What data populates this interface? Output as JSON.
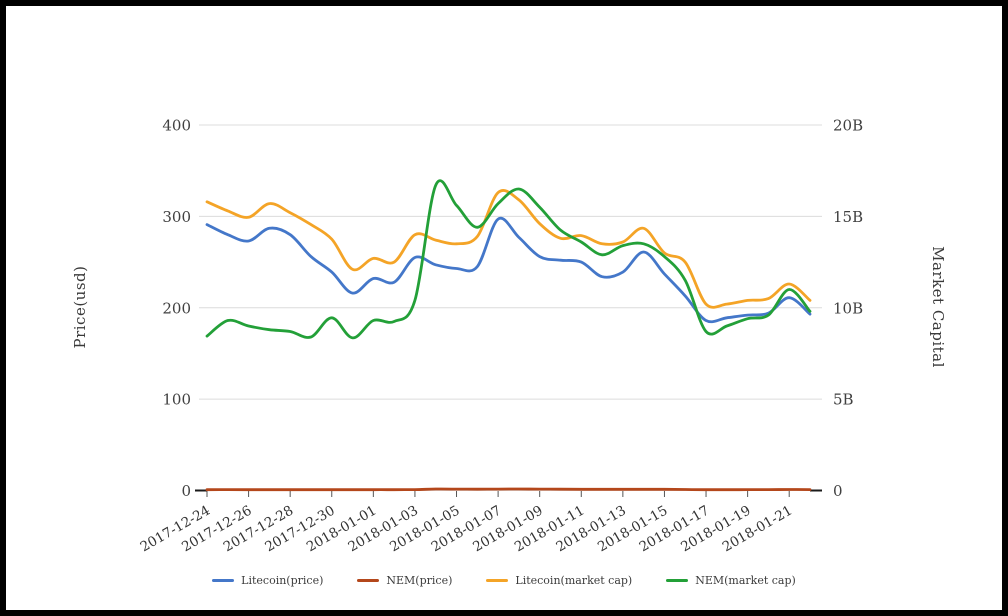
{
  "window": {
    "background": "#ffffff",
    "frame_color": "#000000",
    "grid_color": "#dcdcdc",
    "tick_text_color": "#404040"
  },
  "chart_data": {
    "type": "line",
    "smooth": true,
    "grid": true,
    "legend_position": "bottom",
    "x": [
      "2017-12-24",
      "2017-12-25",
      "2017-12-26",
      "2017-12-27",
      "2017-12-28",
      "2017-12-29",
      "2017-12-30",
      "2017-12-31",
      "2018-01-01",
      "2018-01-02",
      "2018-01-03",
      "2018-01-04",
      "2018-01-05",
      "2018-01-06",
      "2018-01-07",
      "2018-01-08",
      "2018-01-09",
      "2018-01-10",
      "2018-01-11",
      "2018-01-12",
      "2018-01-13",
      "2018-01-14",
      "2018-01-15",
      "2018-01-16",
      "2018-01-17",
      "2018-01-18",
      "2018-01-19",
      "2018-01-20",
      "2018-01-21",
      "2018-01-22"
    ],
    "x_tick_step": 2,
    "x_tick_labels": [
      "2017-12-24",
      "2017-12-26",
      "2017-12-28",
      "2017-12-30",
      "2018-01-01",
      "2018-01-03",
      "2018-01-05",
      "2018-01-07",
      "2018-01-09",
      "2018-01-11",
      "2018-01-13",
      "2018-01-15",
      "2018-01-17",
      "2018-01-19",
      "2018-01-21"
    ],
    "left_axis": {
      "title": "Price(usd)",
      "min": 0,
      "max": 400,
      "ticks": [
        0,
        100,
        200,
        300,
        400
      ],
      "tick_labels": [
        "0",
        "100",
        "200",
        "300",
        "400"
      ]
    },
    "right_axis": {
      "title": "Market Capital",
      "min": 0,
      "max": 20,
      "unit": "B",
      "ticks": [
        0,
        5,
        10,
        15,
        20
      ],
      "tick_labels": [
        "0",
        "5B",
        "10B",
        "15B",
        "20B"
      ]
    },
    "series": [
      {
        "name": "Litecoin(price)",
        "axis": "left",
        "color": "#4477c9",
        "values": [
          291,
          280,
          273,
          287,
          280,
          256,
          239,
          216,
          232,
          228,
          255,
          247,
          243,
          245,
          297,
          277,
          256,
          252,
          250,
          234,
          239,
          261,
          237,
          213,
          186,
          189,
          192,
          194,
          211,
          193
        ]
      },
      {
        "name": "NEM(price)",
        "axis": "left",
        "color": "#b4471b",
        "values": [
          0.92,
          0.95,
          0.93,
          0.88,
          0.87,
          0.84,
          0.95,
          0.84,
          0.93,
          0.93,
          1.0,
          1.67,
          1.56,
          1.44,
          1.57,
          1.65,
          1.55,
          1.43,
          1.36,
          1.29,
          1.35,
          1.35,
          1.28,
          1.1,
          0.86,
          0.9,
          0.94,
          0.96,
          1.1,
          0.97
        ]
      },
      {
        "name": "Litecoin(market cap)",
        "axis": "right",
        "color": "#f4a427",
        "values": [
          15.8,
          15.3,
          14.95,
          15.7,
          15.2,
          14.55,
          13.75,
          12.1,
          12.7,
          12.5,
          14.0,
          13.7,
          13.5,
          13.9,
          16.3,
          15.9,
          14.6,
          13.8,
          13.95,
          13.5,
          13.6,
          14.35,
          13.0,
          12.5,
          10.2,
          10.2,
          10.4,
          10.5,
          11.3,
          10.4
        ]
      },
      {
        "name": "NEM(market cap)",
        "axis": "right",
        "color": "#23a038",
        "values": [
          8.45,
          9.3,
          9.0,
          8.8,
          8.7,
          8.4,
          9.45,
          8.35,
          9.3,
          9.25,
          10.4,
          16.7,
          15.6,
          14.4,
          15.7,
          16.5,
          15.5,
          14.25,
          13.6,
          12.9,
          13.4,
          13.5,
          12.8,
          11.5,
          8.7,
          9.0,
          9.4,
          9.6,
          11.0,
          9.8
        ]
      }
    ]
  }
}
